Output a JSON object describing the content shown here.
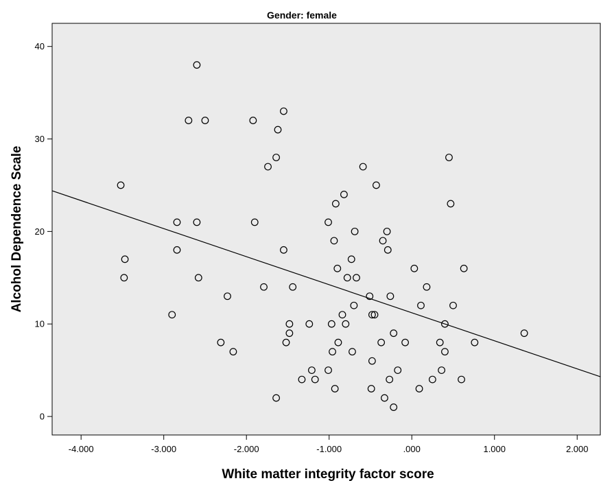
{
  "colors": {
    "plot_background": "#ebebeb",
    "axis": "#000000",
    "marker_stroke": "#000000",
    "fit_line": "#000000"
  },
  "chart_data": {
    "type": "scatter",
    "title": "Gender: female",
    "xlabel": "White matter integrity factor score",
    "ylabel": "Alcohol Dependence Scale",
    "xlim": [
      -4.35,
      2.28
    ],
    "ylim": [
      -2,
      42.5
    ],
    "x_ticks": [
      -4,
      -3,
      -2,
      -1,
      0,
      1,
      2
    ],
    "x_tick_labels": [
      "-4.000",
      "-3.000",
      "-2.000",
      "-1.000",
      ".000",
      "1.000",
      "2.000"
    ],
    "y_ticks": [
      0,
      10,
      20,
      30,
      40
    ],
    "y_tick_labels": [
      "0",
      "10",
      "20",
      "30",
      "40"
    ],
    "grid": false,
    "marker": "open-circle",
    "fit_line": {
      "x": [
        -4.35,
        2.28
      ],
      "y": [
        24.4,
        4.3
      ]
    },
    "points": [
      {
        "x": -2.6,
        "y": 38
      },
      {
        "x": -1.55,
        "y": 33
      },
      {
        "x": -2.7,
        "y": 32
      },
      {
        "x": -2.5,
        "y": 32
      },
      {
        "x": -1.92,
        "y": 32
      },
      {
        "x": -1.62,
        "y": 31
      },
      {
        "x": -1.64,
        "y": 28
      },
      {
        "x": 0.45,
        "y": 28
      },
      {
        "x": -1.74,
        "y": 27
      },
      {
        "x": -0.59,
        "y": 27
      },
      {
        "x": -3.52,
        "y": 25
      },
      {
        "x": -0.43,
        "y": 25
      },
      {
        "x": -0.82,
        "y": 24
      },
      {
        "x": -0.92,
        "y": 23
      },
      {
        "x": 0.47,
        "y": 23
      },
      {
        "x": -2.84,
        "y": 21
      },
      {
        "x": -2.6,
        "y": 21
      },
      {
        "x": -1.9,
        "y": 21
      },
      {
        "x": -1.01,
        "y": 21
      },
      {
        "x": -0.69,
        "y": 20
      },
      {
        "x": -0.3,
        "y": 20
      },
      {
        "x": -0.94,
        "y": 19
      },
      {
        "x": -0.35,
        "y": 19
      },
      {
        "x": -2.84,
        "y": 18
      },
      {
        "x": -1.55,
        "y": 18
      },
      {
        "x": -0.29,
        "y": 18
      },
      {
        "x": -3.47,
        "y": 17
      },
      {
        "x": -0.73,
        "y": 17
      },
      {
        "x": -0.9,
        "y": 16
      },
      {
        "x": 0.03,
        "y": 16
      },
      {
        "x": 0.63,
        "y": 16
      },
      {
        "x": -3.48,
        "y": 15
      },
      {
        "x": -2.58,
        "y": 15
      },
      {
        "x": -0.78,
        "y": 15
      },
      {
        "x": -0.67,
        "y": 15
      },
      {
        "x": -1.79,
        "y": 14
      },
      {
        "x": -1.44,
        "y": 14
      },
      {
        "x": 0.18,
        "y": 14
      },
      {
        "x": -2.23,
        "y": 13
      },
      {
        "x": -0.51,
        "y": 13
      },
      {
        "x": -0.26,
        "y": 13
      },
      {
        "x": -0.7,
        "y": 12
      },
      {
        "x": 0.11,
        "y": 12
      },
      {
        "x": 0.5,
        "y": 12
      },
      {
        "x": -2.9,
        "y": 11
      },
      {
        "x": -0.84,
        "y": 11
      },
      {
        "x": -0.48,
        "y": 11
      },
      {
        "x": -0.45,
        "y": 11
      },
      {
        "x": -1.48,
        "y": 10
      },
      {
        "x": -1.24,
        "y": 10
      },
      {
        "x": -0.97,
        "y": 10
      },
      {
        "x": -0.8,
        "y": 10
      },
      {
        "x": 0.4,
        "y": 10
      },
      {
        "x": -1.48,
        "y": 9
      },
      {
        "x": -0.22,
        "y": 9
      },
      {
        "x": 1.36,
        "y": 9
      },
      {
        "x": -2.31,
        "y": 8
      },
      {
        "x": -1.52,
        "y": 8
      },
      {
        "x": -0.89,
        "y": 8
      },
      {
        "x": -0.37,
        "y": 8
      },
      {
        "x": -0.08,
        "y": 8
      },
      {
        "x": 0.34,
        "y": 8
      },
      {
        "x": 0.76,
        "y": 8
      },
      {
        "x": -2.16,
        "y": 7
      },
      {
        "x": -0.96,
        "y": 7
      },
      {
        "x": -0.72,
        "y": 7
      },
      {
        "x": 0.4,
        "y": 7
      },
      {
        "x": -0.48,
        "y": 6
      },
      {
        "x": -1.21,
        "y": 5
      },
      {
        "x": -1.01,
        "y": 5
      },
      {
        "x": -0.17,
        "y": 5
      },
      {
        "x": 0.36,
        "y": 5
      },
      {
        "x": -1.33,
        "y": 4
      },
      {
        "x": -1.17,
        "y": 4
      },
      {
        "x": -0.27,
        "y": 4
      },
      {
        "x": 0.25,
        "y": 4
      },
      {
        "x": 0.6,
        "y": 4
      },
      {
        "x": -0.93,
        "y": 3
      },
      {
        "x": -0.49,
        "y": 3
      },
      {
        "x": 0.09,
        "y": 3
      },
      {
        "x": -1.64,
        "y": 2
      },
      {
        "x": -0.33,
        "y": 2
      },
      {
        "x": -0.22,
        "y": 1
      }
    ]
  }
}
